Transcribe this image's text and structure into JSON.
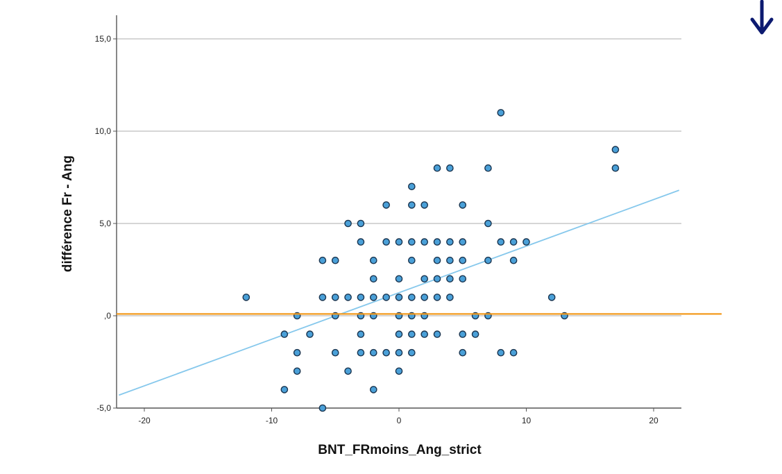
{
  "chart_data": {
    "type": "scatter",
    "xlabel": "BNT_FRmoins_Ang_strict",
    "ylabel": "différence Fr - Ang",
    "xlim": [
      -22,
      22
    ],
    "ylim": [
      -5,
      16.2
    ],
    "x_ticks": [
      {
        "value": -20,
        "label": "-20"
      },
      {
        "value": -10,
        "label": "-10"
      },
      {
        "value": 0,
        "label": "0"
      },
      {
        "value": 10,
        "label": "10"
      },
      {
        "value": 20,
        "label": "20"
      }
    ],
    "y_ticks": [
      {
        "value": -5,
        "label": "-5,0"
      },
      {
        "value": 0,
        "label": ",0"
      },
      {
        "value": 5,
        "label": "5,0"
      },
      {
        "value": 10,
        "label": "10,0"
      },
      {
        "value": 15,
        "label": "15,0"
      }
    ],
    "grid": "horizontal",
    "points": [
      [
        -12,
        1
      ],
      [
        -9,
        -1
      ],
      [
        -9,
        -4
      ],
      [
        -8,
        0
      ],
      [
        -8,
        -2
      ],
      [
        -8,
        -3
      ],
      [
        -7,
        -1
      ],
      [
        -6,
        3
      ],
      [
        -6,
        1
      ],
      [
        -6,
        -5
      ],
      [
        -5,
        3
      ],
      [
        -5,
        1
      ],
      [
        -5,
        0
      ],
      [
        -5,
        -2
      ],
      [
        -4,
        5
      ],
      [
        -4,
        1
      ],
      [
        -4,
        -3
      ],
      [
        -3,
        5
      ],
      [
        -3,
        4
      ],
      [
        -3,
        1
      ],
      [
        -3,
        0
      ],
      [
        -3,
        -1
      ],
      [
        -3,
        -2
      ],
      [
        -2,
        3
      ],
      [
        -2,
        2
      ],
      [
        -2,
        1
      ],
      [
        -2,
        0
      ],
      [
        -2,
        -2
      ],
      [
        -2,
        -4
      ],
      [
        -1,
        6
      ],
      [
        -1,
        4
      ],
      [
        -1,
        1
      ],
      [
        -1,
        -2
      ],
      [
        0,
        4
      ],
      [
        0,
        2
      ],
      [
        0,
        1
      ],
      [
        0,
        0
      ],
      [
        0,
        -1
      ],
      [
        0,
        -2
      ],
      [
        0,
        -3
      ],
      [
        1,
        7
      ],
      [
        1,
        6
      ],
      [
        1,
        4
      ],
      [
        1,
        3
      ],
      [
        1,
        1
      ],
      [
        1,
        0
      ],
      [
        1,
        -1
      ],
      [
        1,
        -2
      ],
      [
        2,
        6
      ],
      [
        2,
        4
      ],
      [
        2,
        2
      ],
      [
        2,
        1
      ],
      [
        2,
        0
      ],
      [
        2,
        -1
      ],
      [
        3,
        8
      ],
      [
        3,
        4
      ],
      [
        3,
        3
      ],
      [
        3,
        2
      ],
      [
        3,
        1
      ],
      [
        3,
        -1
      ],
      [
        4,
        8
      ],
      [
        4,
        4
      ],
      [
        4,
        3
      ],
      [
        4,
        2
      ],
      [
        4,
        1
      ],
      [
        5,
        6
      ],
      [
        5,
        4
      ],
      [
        5,
        3
      ],
      [
        5,
        2
      ],
      [
        5,
        -1
      ],
      [
        5,
        -2
      ],
      [
        6,
        0
      ],
      [
        6,
        -1
      ],
      [
        7,
        8
      ],
      [
        7,
        5
      ],
      [
        7,
        3
      ],
      [
        7,
        0
      ],
      [
        8,
        11
      ],
      [
        8,
        4
      ],
      [
        8,
        -2
      ],
      [
        9,
        4
      ],
      [
        9,
        3
      ],
      [
        9,
        -2
      ],
      [
        10,
        4
      ],
      [
        12,
        1
      ],
      [
        13,
        0
      ],
      [
        17,
        9
      ],
      [
        17,
        8
      ]
    ],
    "fit_line": {
      "x": [
        -22,
        22
      ],
      "y": [
        -4.3,
        6.8
      ],
      "color": "#86c8ec"
    },
    "reference_line": {
      "y": 0.1,
      "color": "#f39a1e"
    },
    "colors": {
      "marker_fill": "#4aa0d8",
      "marker_stroke": "#1a3550",
      "grid": "#c8c8c8",
      "axis": "#555555",
      "arrow": "#0c1a70"
    },
    "extra_icon": "down-arrow-icon"
  }
}
